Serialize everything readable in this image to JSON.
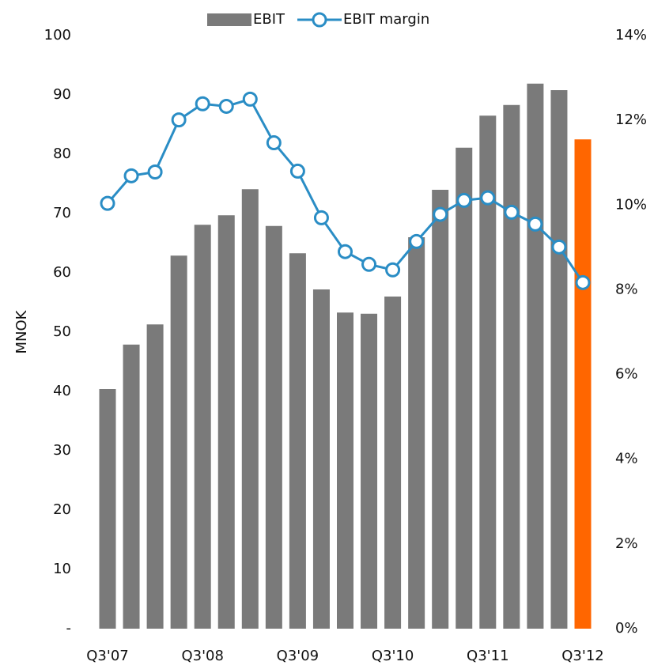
{
  "chart_data": {
    "type": "bar_line",
    "y_axis_label": "MNOK",
    "categories": [
      "Q3'07",
      null,
      null,
      null,
      "Q3'08",
      null,
      null,
      null,
      "Q3'09",
      null,
      null,
      null,
      "Q3'10",
      null,
      null,
      null,
      "Q3'11",
      null,
      null,
      null,
      "Q3'12"
    ],
    "series": [
      {
        "name": "EBIT",
        "type": "bar",
        "color": "#7a7a7a",
        "colors": [
          "#7a7a7a",
          "#7a7a7a",
          "#7a7a7a",
          "#7a7a7a",
          "#7a7a7a",
          "#7a7a7a",
          "#7a7a7a",
          "#7a7a7a",
          "#7a7a7a",
          "#7a7a7a",
          "#7a7a7a",
          "#7a7a7a",
          "#7a7a7a",
          "#7a7a7a",
          "#7a7a7a",
          "#7a7a7a",
          "#7a7a7a",
          "#7a7a7a",
          "#7a7a7a",
          "#7a7a7a",
          "#ff6600"
        ],
        "values": [
          40.4,
          47.9,
          51.3,
          62.9,
          68.1,
          69.7,
          74.1,
          67.9,
          63.3,
          57.2,
          53.3,
          53.1,
          56.0,
          66.0,
          74.0,
          81.1,
          86.5,
          88.3,
          91.9,
          90.8,
          82.5
        ]
      },
      {
        "name": "EBIT margin",
        "type": "line",
        "axis": "y2",
        "color": "#2a8dc5",
        "values": [
          10.04,
          10.69,
          10.78,
          12.01,
          12.39,
          12.33,
          12.5,
          11.47,
          10.8,
          9.7,
          8.9,
          8.6,
          8.47,
          9.14,
          9.78,
          10.11,
          10.17,
          9.83,
          9.55,
          9.01,
          8.17
        ]
      }
    ],
    "ylim": [
      0,
      100
    ],
    "yticks": [
      {
        "value": 0,
        "label": "-"
      },
      10,
      20,
      30,
      40,
      50,
      60,
      70,
      80,
      90,
      100
    ],
    "y2lim": [
      0,
      14
    ],
    "y2ticks": [
      {
        "value": 0,
        "label": "0%"
      },
      {
        "value": 2,
        "label": "2%"
      },
      {
        "value": 4,
        "label": "4%"
      },
      {
        "value": 6,
        "label": "6%"
      },
      {
        "value": 8,
        "label": "8%"
      },
      {
        "value": 10,
        "label": "10%"
      },
      {
        "value": 12,
        "label": "12%"
      },
      {
        "value": 14,
        "label": "14%"
      }
    ],
    "legend": "top"
  }
}
